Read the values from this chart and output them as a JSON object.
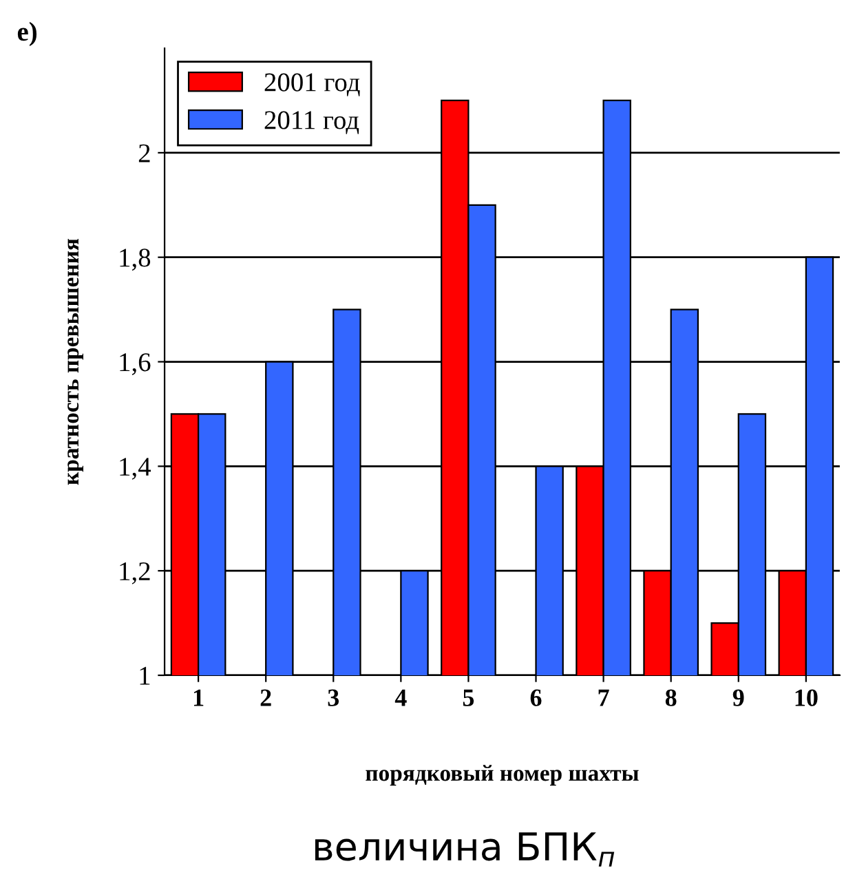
{
  "chart_data": {
    "type": "bar",
    "title": "е)",
    "ylabel": "кратность превышения",
    "xlabel": "порядковый номер шахты",
    "annotations": [
      "величина БПК$_{п}$"
    ],
    "categories": [
      "1",
      "2",
      "3",
      "4",
      "5",
      "6",
      "7",
      "8",
      "9",
      "10"
    ],
    "series": [
      {
        "name": "2001 год",
        "color": "#ff0000",
        "values": [
          1.5,
          null,
          null,
          null,
          2.1,
          null,
          1.4,
          1.2,
          1.1,
          1.2
        ]
      },
      {
        "name": "2011 год",
        "color": "#3366ff",
        "values": [
          1.5,
          1.6,
          1.7,
          1.2,
          1.9,
          1.4,
          2.1,
          1.7,
          1.5,
          1.8
        ]
      }
    ],
    "ylim": [
      1,
      2.2
    ],
    "yticks": [
      1,
      {
        "value": 1.2,
        "label": "1,2"
      },
      {
        "value": 1.4,
        "label": "1,4"
      },
      {
        "value": 1.6,
        "label": "1,6"
      },
      {
        "value": 1.8,
        "label": "1,8"
      },
      2
    ],
    "grid": "y",
    "legend": "top left"
  }
}
